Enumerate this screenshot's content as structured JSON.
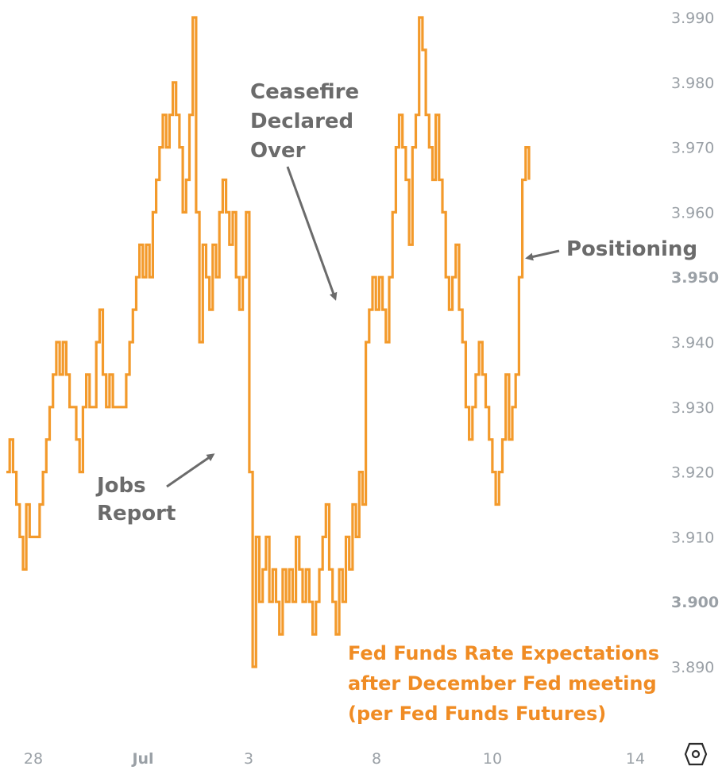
{
  "chart_data": {
    "type": "line",
    "title_lines": [
      "Fed Funds Rate Expectations",
      "after December Fed meeting",
      "(per Fed Funds Futures)"
    ],
    "colors": {
      "series": "#f39a2b",
      "title": "#f08c24",
      "annotation": "#6b6b6b",
      "ticks": "#9aa0a6"
    },
    "y_ticks": [
      {
        "label": "3.990",
        "value": 3.99
      },
      {
        "label": "3.980",
        "value": 3.98
      },
      {
        "label": "3.970",
        "value": 3.97
      },
      {
        "label": "3.960",
        "value": 3.96
      },
      {
        "label": "3.950",
        "value": 3.95,
        "bold": true
      },
      {
        "label": "3.940",
        "value": 3.94
      },
      {
        "label": "3.930",
        "value": 3.93
      },
      {
        "label": "3.920",
        "value": 3.92
      },
      {
        "label": "3.910",
        "value": 3.91
      },
      {
        "label": "3.900",
        "value": 3.9,
        "bold": true
      },
      {
        "label": "3.890",
        "value": 3.89
      }
    ],
    "ylim": [
      3.8855,
      3.9925
    ],
    "x_ticks": [
      {
        "label": "28",
        "bold": false
      },
      {
        "label": "Jul",
        "bold": true
      },
      {
        "label": "3",
        "bold": false
      },
      {
        "label": "8",
        "bold": false
      },
      {
        "label": "10",
        "bold": false
      },
      {
        "label": "14",
        "bold": false
      }
    ],
    "gridlines": false,
    "series": [
      {
        "values": [
          3.92,
          3.925,
          3.92,
          3.915,
          3.91,
          3.905,
          3.915,
          3.91,
          3.91,
          3.91,
          3.915,
          3.92,
          3.925,
          3.93,
          3.935,
          3.94,
          3.935,
          3.94,
          3.935,
          3.93,
          3.93,
          3.925,
          3.92,
          3.93,
          3.935,
          3.93,
          3.93,
          3.94,
          3.945,
          3.935,
          3.93,
          3.935,
          3.93,
          3.93,
          3.93,
          3.93,
          3.935,
          3.94,
          3.945,
          3.95,
          3.955,
          3.95,
          3.955,
          3.95,
          3.96,
          3.965,
          3.97,
          3.975,
          3.97,
          3.975,
          3.98,
          3.975,
          3.97,
          3.96,
          3.965,
          3.975,
          3.99,
          3.96,
          3.94,
          3.955,
          3.95,
          3.945,
          3.955,
          3.95,
          3.96,
          3.965,
          3.96,
          3.955,
          3.96,
          3.95,
          3.945,
          3.95,
          3.96,
          3.92,
          3.89,
          3.91,
          3.9,
          3.905,
          3.91,
          3.9,
          3.905,
          3.9,
          3.895,
          3.905,
          3.9,
          3.905,
          3.9,
          3.91,
          3.905,
          3.9,
          3.905,
          3.9,
          3.895,
          3.9,
          3.905,
          3.91,
          3.915,
          3.905,
          3.9,
          3.895,
          3.905,
          3.9,
          3.91,
          3.905,
          3.915,
          3.91,
          3.92,
          3.915,
          3.94,
          3.945,
          3.95,
          3.945,
          3.95,
          3.945,
          3.94,
          3.95,
          3.96,
          3.97,
          3.975,
          3.97,
          3.965,
          3.955,
          3.97,
          3.975,
          3.99,
          3.985,
          3.975,
          3.97,
          3.965,
          3.975,
          3.965,
          3.96,
          3.95,
          3.945,
          3.95,
          3.955,
          3.945,
          3.94,
          3.93,
          3.925,
          3.93,
          3.935,
          3.94,
          3.935,
          3.93,
          3.925,
          3.92,
          3.915,
          3.92,
          3.925,
          3.935,
          3.925,
          3.93,
          3.935,
          3.95,
          3.965,
          3.97,
          3.965
        ]
      }
    ],
    "annotations": [
      {
        "lines": [
          "Jobs",
          "Report"
        ]
      },
      {
        "lines": [
          "Ceasefire",
          "Declared",
          "Over"
        ]
      },
      {
        "lines": [
          "Positioning"
        ]
      }
    ]
  }
}
